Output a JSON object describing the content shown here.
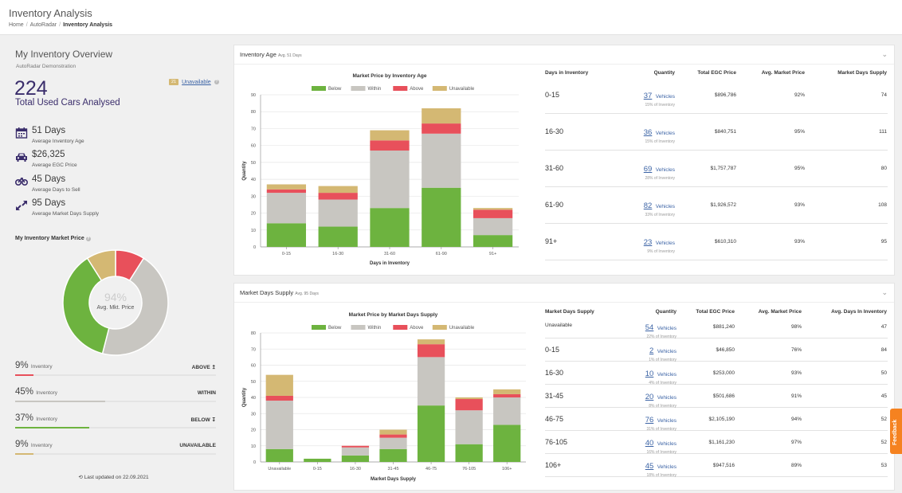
{
  "header": {
    "title": "Inventory Analysis",
    "breadcrumb": [
      "Home",
      "AutoRadar",
      "Inventory Analysis"
    ]
  },
  "overview": {
    "title": "My Inventory Overview",
    "subtitle": "AutoRadar Demonstration",
    "badge": "21",
    "unavailable_link": "Unavailable",
    "total": "224",
    "total_label": "Total Used Cars Analysed",
    "stats": [
      {
        "icon": "calendar-icon",
        "value": "51 Days",
        "label": "Average Inventory Age"
      },
      {
        "icon": "car-icon",
        "value": "$26,325",
        "label": "Average EGC Price"
      },
      {
        "icon": "car-sale-icon",
        "value": "45 Days",
        "label": "Average Days to Sell"
      },
      {
        "icon": "arrows-icon",
        "value": "95 Days",
        "label": "Average Market Days Supply"
      }
    ],
    "market_price_title": "My Inventory Market Price",
    "donut": {
      "center_pct": "94%",
      "center_label": "Avg. Mkt. Price",
      "slices": [
        {
          "name": "Above",
          "value": 9,
          "color": "#e8505b"
        },
        {
          "name": "Within",
          "value": 45,
          "color": "#c8c6c1"
        },
        {
          "name": "Below",
          "value": 37,
          "color": "#6db33f"
        },
        {
          "name": "Unavailable",
          "value": 9,
          "color": "#d4b873"
        }
      ]
    },
    "distribution": [
      {
        "pct": "9%",
        "suffix": "Inventory",
        "label": "ABOVE ↥",
        "value": 9,
        "color": "#e8505b"
      },
      {
        "pct": "45%",
        "suffix": "Inventory",
        "label": "WITHIN",
        "value": 45,
        "color": "#c8c6c1"
      },
      {
        "pct": "37%",
        "suffix": "Inventory",
        "label": "BELOW ↧",
        "value": 37,
        "color": "#6db33f"
      },
      {
        "pct": "9%",
        "suffix": "Inventory",
        "label": "UNAVAILABLE",
        "value": 9,
        "color": "#d4b873"
      }
    ],
    "updated": "Last updated on 22.09.2021"
  },
  "inventory_age": {
    "title": "Inventory Age",
    "avg": "Avg. 51 Days",
    "table": {
      "headers": [
        "Days in Inventory",
        "Quantity",
        "Total EGC Price",
        "Avg. Market Price",
        "Market Days Supply"
      ],
      "rows": [
        {
          "cat": "0-15",
          "qty": "37",
          "veh": "Vehicles",
          "share": "15% of Inventory",
          "egc": "$896,786",
          "mkt": "92%",
          "last": "74"
        },
        {
          "cat": "16-30",
          "qty": "36",
          "veh": "Vehicles",
          "share": "15% of Inventory",
          "egc": "$840,751",
          "mkt": "95%",
          "last": "111"
        },
        {
          "cat": "31-60",
          "qty": "69",
          "veh": "Vehicles",
          "share": "28% of Inventory",
          "egc": "$1,757,787",
          "mkt": "95%",
          "last": "80"
        },
        {
          "cat": "61-90",
          "qty": "82",
          "veh": "Vehicles",
          "share": "33% of Inventory",
          "egc": "$1,926,572",
          "mkt": "93%",
          "last": "108"
        },
        {
          "cat": "91+",
          "qty": "23",
          "veh": "Vehicles",
          "share": "9% of Inventory",
          "egc": "$610,310",
          "mkt": "93%",
          "last": "95"
        }
      ]
    }
  },
  "market_days": {
    "title": "Market Days Supply",
    "avg": "Avg. 95 Days",
    "table": {
      "headers": [
        "Market Days Supply",
        "Quantity",
        "Total EGC Price",
        "Avg. Market Price",
        "Avg. Days In Inventory"
      ],
      "rows": [
        {
          "cat": "Unavailable",
          "qty": "54",
          "veh": "Vehicles",
          "share": "22% of Inventory",
          "egc": "$881,240",
          "mkt": "98%",
          "last": "47"
        },
        {
          "cat": "0-15",
          "qty": "2",
          "veh": "Vehicles",
          "share": "1% of Inventory",
          "egc": "$46,850",
          "mkt": "76%",
          "last": "84"
        },
        {
          "cat": "16-30",
          "qty": "10",
          "veh": "Vehicles",
          "share": "4% of Inventory",
          "egc": "$253,000",
          "mkt": "93%",
          "last": "50"
        },
        {
          "cat": "31-45",
          "qty": "20",
          "veh": "Vehicles",
          "share": "8% of Inventory",
          "egc": "$501,686",
          "mkt": "91%",
          "last": "45"
        },
        {
          "cat": "46-75",
          "qty": "76",
          "veh": "Vehicles",
          "share": "31% of Inventory",
          "egc": "$2,105,190",
          "mkt": "94%",
          "last": "52"
        },
        {
          "cat": "76-105",
          "qty": "40",
          "veh": "Vehicles",
          "share": "16% of Inventory",
          "egc": "$1,161,230",
          "mkt": "97%",
          "last": "52"
        },
        {
          "cat": "106+",
          "qty": "45",
          "veh": "Vehicles",
          "share": "18% of Inventory",
          "egc": "$947,516",
          "mkt": "89%",
          "last": "53"
        }
      ]
    }
  },
  "chart_data": [
    {
      "type": "bar",
      "stacked": true,
      "title": "Market Price by Inventory Age",
      "xlabel": "Days in Inventory",
      "ylabel": "Quantity",
      "ylim": [
        0,
        90
      ],
      "yticks": [
        0,
        10,
        20,
        30,
        40,
        50,
        60,
        70,
        80,
        90
      ],
      "categories": [
        "0-15",
        "16-30",
        "31-60",
        "61-90",
        "91+"
      ],
      "legend_position": "top",
      "series": [
        {
          "name": "Below",
          "color": "#6db33f",
          "values": [
            14,
            12,
            23,
            35,
            7
          ]
        },
        {
          "name": "Within",
          "color": "#c8c6c1",
          "values": [
            18,
            16,
            34,
            32,
            10
          ]
        },
        {
          "name": "Above",
          "color": "#e8505b",
          "values": [
            2,
            4,
            6,
            6,
            5
          ]
        },
        {
          "name": "Unavailable",
          "color": "#d4b873",
          "values": [
            3,
            4,
            6,
            9,
            1
          ]
        }
      ]
    },
    {
      "type": "bar",
      "stacked": true,
      "title": "Market Price by Market Days Supply",
      "xlabel": "Market Days Supply",
      "ylabel": "Quantity",
      "ylim": [
        0,
        80
      ],
      "yticks": [
        0,
        10,
        20,
        30,
        40,
        50,
        60,
        70,
        80
      ],
      "categories": [
        "Unavailable",
        "0-15",
        "16-30",
        "31-45",
        "46-75",
        "76-105",
        "106+"
      ],
      "legend_position": "top",
      "series": [
        {
          "name": "Below",
          "color": "#6db33f",
          "values": [
            8,
            2,
            4,
            8,
            35,
            11,
            23
          ]
        },
        {
          "name": "Within",
          "color": "#c8c6c1",
          "values": [
            30,
            0,
            5,
            7,
            30,
            21,
            17
          ]
        },
        {
          "name": "Above",
          "color": "#e8505b",
          "values": [
            3,
            0,
            1,
            2,
            8,
            7,
            2
          ]
        },
        {
          "name": "Unavailable",
          "color": "#d4b873",
          "values": [
            13,
            0,
            0,
            3,
            3,
            1,
            3
          ]
        }
      ]
    }
  ],
  "feedback_label": "Feedback"
}
